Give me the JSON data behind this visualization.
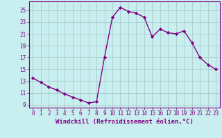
{
  "x": [
    0,
    1,
    2,
    3,
    4,
    5,
    6,
    7,
    8,
    9,
    10,
    11,
    12,
    13,
    14,
    15,
    16,
    17,
    18,
    19,
    20,
    21,
    22,
    23
  ],
  "y": [
    13.5,
    12.8,
    12.0,
    11.5,
    10.8,
    10.3,
    9.8,
    9.3,
    9.5,
    17.0,
    23.8,
    25.5,
    24.8,
    24.5,
    23.8,
    20.5,
    21.8,
    21.2,
    21.0,
    21.5,
    19.5,
    17.0,
    15.8,
    15.0
  ],
  "line_color": "#800080",
  "marker": "D",
  "markersize": 2.2,
  "linewidth": 1.0,
  "xlabel": "Windchill (Refroidissement éolien,°C)",
  "xlabel_fontsize": 6.5,
  "bg_color": "#c8eef0",
  "grid_color": "#aacccc",
  "yticks": [
    9,
    11,
    13,
    15,
    17,
    19,
    21,
    23,
    25
  ],
  "xticks": [
    0,
    1,
    2,
    3,
    4,
    5,
    6,
    7,
    8,
    9,
    10,
    11,
    12,
    13,
    14,
    15,
    16,
    17,
    18,
    19,
    20,
    21,
    22,
    23
  ],
  "ylim": [
    8.5,
    26.5
  ],
  "xlim": [
    -0.5,
    23.5
  ],
  "tick_fontsize": 5.5
}
